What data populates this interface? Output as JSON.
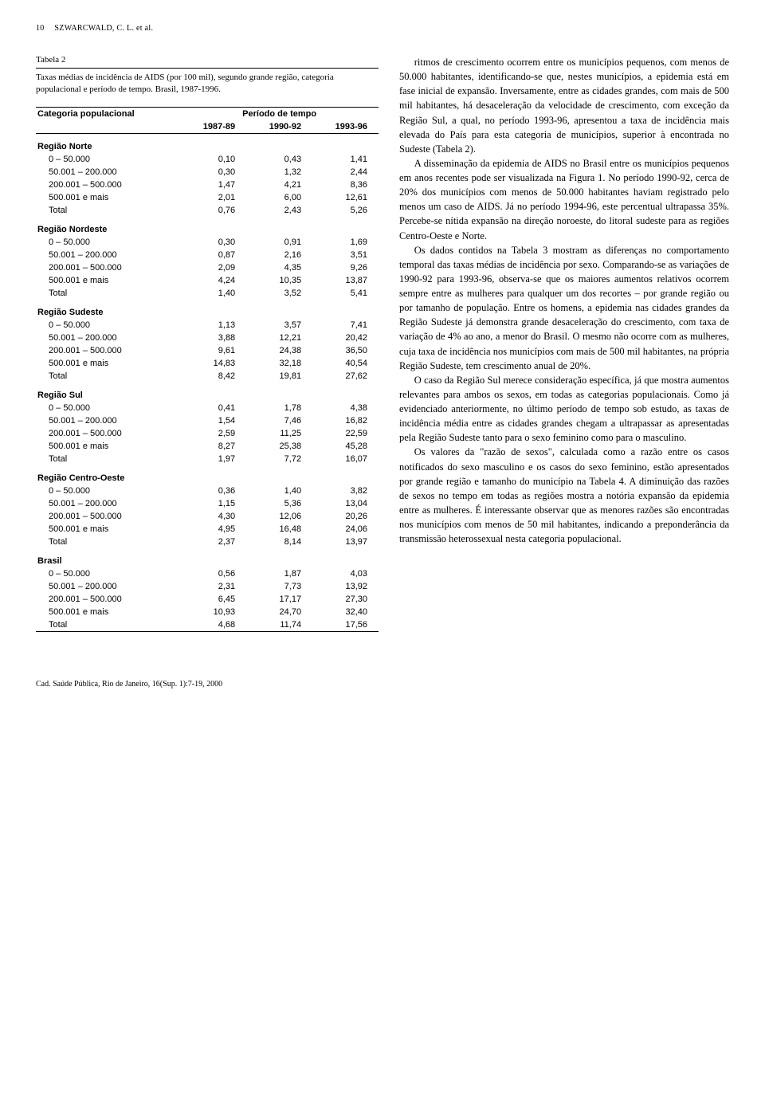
{
  "header": {
    "page_num": "10",
    "running": "SZWARCWALD, C. L. et al."
  },
  "table": {
    "label": "Tabela 2",
    "caption": "Taxas médias de incidência de AIDS (por 100 mil), segundo grande região, categoria populacional e período de tempo. Brasil, 1987-1996.",
    "col_header_left": "Categoria populacional",
    "col_header_span": "Período de tempo",
    "periods": [
      "1987-89",
      "1990-92",
      "1993-96"
    ],
    "cat_labels": [
      "0 – 50.000",
      "50.001 – 200.000",
      "200.001 – 500.000",
      "500.001 e mais",
      "Total"
    ],
    "regions": [
      {
        "name": "Região Norte",
        "rows": [
          [
            "0,10",
            "0,43",
            "1,41"
          ],
          [
            "0,30",
            "1,32",
            "2,44"
          ],
          [
            "1,47",
            "4,21",
            "8,36"
          ],
          [
            "2,01",
            "6,00",
            "12,61"
          ],
          [
            "0,76",
            "2,43",
            "5,26"
          ]
        ]
      },
      {
        "name": "Região Nordeste",
        "rows": [
          [
            "0,30",
            "0,91",
            "1,69"
          ],
          [
            "0,87",
            "2,16",
            "3,51"
          ],
          [
            "2,09",
            "4,35",
            "9,26"
          ],
          [
            "4,24",
            "10,35",
            "13,87"
          ],
          [
            "1,40",
            "3,52",
            "5,41"
          ]
        ]
      },
      {
        "name": "Região Sudeste",
        "rows": [
          [
            "1,13",
            "3,57",
            "7,41"
          ],
          [
            "3,88",
            "12,21",
            "20,42"
          ],
          [
            "9,61",
            "24,38",
            "36,50"
          ],
          [
            "14,83",
            "32,18",
            "40,54"
          ],
          [
            "8,42",
            "19,81",
            "27,62"
          ]
        ]
      },
      {
        "name": "Região Sul",
        "rows": [
          [
            "0,41",
            "1,78",
            "4,38"
          ],
          [
            "1,54",
            "7,46",
            "16,82"
          ],
          [
            "2,59",
            "11,25",
            "22,59"
          ],
          [
            "8,27",
            "25,38",
            "45,28"
          ],
          [
            "1,97",
            "7,72",
            "16,07"
          ]
        ]
      },
      {
        "name": "Região Centro-Oeste",
        "rows": [
          [
            "0,36",
            "1,40",
            "3,82"
          ],
          [
            "1,15",
            "5,36",
            "13,04"
          ],
          [
            "4,30",
            "12,06",
            "20,26"
          ],
          [
            "4,95",
            "16,48",
            "24,06"
          ],
          [
            "2,37",
            "8,14",
            "13,97"
          ]
        ]
      },
      {
        "name": "Brasil",
        "rows": [
          [
            "0,56",
            "1,87",
            "4,03"
          ],
          [
            "2,31",
            "7,73",
            "13,92"
          ],
          [
            "6,45",
            "17,17",
            "27,30"
          ],
          [
            "10,93",
            "24,70",
            "32,40"
          ],
          [
            "4,68",
            "11,74",
            "17,56"
          ]
        ]
      }
    ]
  },
  "body": {
    "p1": "ritmos de crescimento ocorrem entre os municípios pequenos, com menos de 50.000 habitantes, identificando-se que, nestes municípios, a epidemia está em fase inicial de expansão. Inversamente, entre as cidades grandes, com mais de 500 mil habitantes, há desaceleração da velocidade de crescimento, com exceção da Região Sul, a qual, no período 1993-96, apresentou a taxa de incidência mais elevada do País para esta categoria de municípios, superior à encontrada no Sudeste (Tabela 2).",
    "p2": "A disseminação da epidemia de AIDS no Brasil entre os municípios pequenos em anos recentes pode ser visualizada na Figura 1. No período 1990-92, cerca de 20% dos municípios com menos de 50.000 habitantes haviam registrado pelo menos um caso de AIDS. Já no período 1994-96, este percentual ultrapassa 35%. Percebe-se nítida expansão na direção noroeste, do litoral sudeste para as regiões Centro-Oeste e Norte.",
    "p3": "Os dados contidos na Tabela 3 mostram as diferenças no comportamento temporal das taxas médias de incidência por sexo. Comparando-se as variações de 1990-92 para 1993-96, observa-se que os maiores aumentos relativos ocorrem sempre entre as mulheres para qualquer um dos recortes – por grande região ou por tamanho de população. Entre os homens, a epidemia nas cidades grandes da Região Sudeste já demonstra grande desaceleração do crescimento, com taxa de variação de 4% ao ano, a menor do Brasil. O mesmo não ocorre com as mulheres, cuja taxa de incidência nos municípios com mais de 500 mil habitantes, na própria Região Sudeste, tem crescimento anual de 20%.",
    "p4": "O caso da Região Sul merece consideração específica, já que mostra aumentos relevantes para ambos os sexos, em todas as categorias populacionais. Como já evidenciado anteriormente, no último período de tempo sob estudo, as taxas de incidência média entre as cidades grandes chegam a ultrapassar as apresentadas pela Região Sudeste tanto para o sexo feminino como para o masculino.",
    "p5": "Os valores da \"razão de sexos\", calculada como a razão entre os casos notificados do sexo masculino e os casos do sexo feminino, estão apresentados por grande região e tamanho do município na Tabela 4. A diminuição das razões de sexos no tempo em todas as regiões mostra a notória expansão da epidemia entre as mulheres. É interessante observar que as menores razões são encontradas nos municípios com menos de 50 mil habitantes, indicando a preponderância da transmissão heterossexual nesta categoria populacional."
  },
  "footer": "Cad. Saúde Pública, Rio de Janeiro, 16(Sup. 1):7-19, 2000"
}
